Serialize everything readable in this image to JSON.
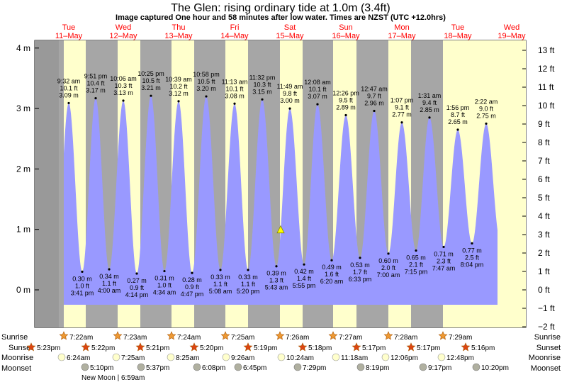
{
  "title": "The Glen: rising  ordinary tide at 1.0m (3.4ft)",
  "subtitle": "Image captured One hour and 58 minutes after low water. Times are NZST (UTC +12.0hrs)",
  "days": [
    {
      "dow": "Tue",
      "date": "11–May"
    },
    {
      "dow": "Wed",
      "date": "12–May"
    },
    {
      "dow": "Thu",
      "date": "13–May"
    },
    {
      "dow": "Fri",
      "date": "14–May"
    },
    {
      "dow": "Sat",
      "date": "15–May"
    },
    {
      "dow": "Sun",
      "date": "16–May"
    },
    {
      "dow": "Mon",
      "date": "17–May"
    },
    {
      "dow": "Tue",
      "date": "18–May"
    },
    {
      "dow": "Wed",
      "date": "19–May"
    }
  ],
  "row_labels": {
    "sunrise": "Sunrise",
    "sunset": "Sunset",
    "moonrise": "Moonrise",
    "moonset": "Moonset"
  },
  "sunrise": [
    "7:22am",
    "7:23am",
    "7:24am",
    "7:25am",
    "7:26am",
    "7:27am",
    "7:28am",
    "7:29am"
  ],
  "sunset": [
    "5:23pm",
    "5:22pm",
    "5:21pm",
    "5:20pm",
    "5:19pm",
    "5:18pm",
    "5:17pm",
    "5:17pm",
    "5:16pm"
  ],
  "moonrise": [
    "6:24am",
    "7:25am",
    "8:25am",
    "9:26am",
    "10:24am",
    "11:18am",
    "12:06pm",
    "12:48pm"
  ],
  "moonset": [
    "5:10pm",
    "5:37pm",
    "6:08pm",
    "6:45pm",
    "7:29pm",
    "8:19pm",
    "9:17pm",
    "10:20pm"
  ],
  "moon_phase": "New Moon | 6:59am",
  "colors": {
    "night": "#a6a6a6",
    "day": "#ffffcc",
    "tide": "#9999ff",
    "day_label": "#ff0000",
    "sun": "#ee9933",
    "sunset": "#dd4411",
    "moonrise": "#ffffcc",
    "moonset": "#b0b0a0",
    "marker": "#ffff00"
  },
  "chart_data": {
    "type": "area",
    "title": "The Glen: rising  ordinary tide at 1.0m (3.4ft)",
    "ylim_m": [
      -0.6,
      4.1
    ],
    "ylim_ft": [
      -2,
      13
    ],
    "y_ticks_m": [
      "0 m",
      "1 m",
      "2 m",
      "3 m",
      "4 m"
    ],
    "y_ticks_ft": [
      "−2 ft",
      "−1 ft",
      "0 ft",
      "1 ft",
      "2 ft",
      "3 ft",
      "4 ft",
      "5 ft",
      "6 ft",
      "7 ft",
      "8 ft",
      "9 ft",
      "10 ft",
      "11 ft",
      "12 ft",
      "13 ft"
    ],
    "highs": [
      {
        "time": "9:32 am",
        "ft": "10.1 ft",
        "m": "3.09 m",
        "value": 3.09
      },
      {
        "time": "9:51 pm",
        "ft": "10.4 ft",
        "m": "3.17 m",
        "value": 3.17
      },
      {
        "time": "10:06 am",
        "ft": "10.3 ft",
        "m": "3.13 m",
        "value": 3.13
      },
      {
        "time": "10:25 pm",
        "ft": "10.5 ft",
        "m": "3.21 m",
        "value": 3.21
      },
      {
        "time": "10:39 am",
        "ft": "10.2 ft",
        "m": "3.12 m",
        "value": 3.12
      },
      {
        "time": "10:58 pm",
        "ft": "10.5 ft",
        "m": "3.20 m",
        "value": 3.2
      },
      {
        "time": "11:13 am",
        "ft": "10.1 ft",
        "m": "3.08 m",
        "value": 3.08
      },
      {
        "time": "11:32 pm",
        "ft": "10.3 ft",
        "m": "3.15 m",
        "value": 3.15
      },
      {
        "time": "11:49 am",
        "ft": "9.8 ft",
        "m": "3.00 m",
        "value": 3.0
      },
      {
        "time": "12:08 am",
        "ft": "10.1 ft",
        "m": "3.07 m",
        "value": 3.07
      },
      {
        "time": "12:26 pm",
        "ft": "9.5 ft",
        "m": "2.89 m",
        "value": 2.89
      },
      {
        "time": "12:47 am",
        "ft": "9.7 ft",
        "m": "2.96 m",
        "value": 2.96
      },
      {
        "time": "1:07 pm",
        "ft": "9.1 ft",
        "m": "2.77 m",
        "value": 2.77
      },
      {
        "time": "1:31 am",
        "ft": "9.4 ft",
        "m": "2.85 m",
        "value": 2.85
      },
      {
        "time": "1:56 pm",
        "ft": "8.7 ft",
        "m": "2.65 m",
        "value": 2.65
      },
      {
        "time": "2:22 am",
        "ft": "9.0 ft",
        "m": "2.75 m",
        "value": 2.75
      }
    ],
    "lows": [
      {
        "time": "3:41 pm",
        "ft": "1.0 ft",
        "m": "0.30 m",
        "value": 0.3
      },
      {
        "time": "4:00 am",
        "ft": "1.1 ft",
        "m": "0.34 m",
        "value": 0.34
      },
      {
        "time": "4:14 pm",
        "ft": "0.9 ft",
        "m": "0.27 m",
        "value": 0.27
      },
      {
        "time": "4:34 am",
        "ft": "1.0 ft",
        "m": "0.31 m",
        "value": 0.31
      },
      {
        "time": "4:47 pm",
        "ft": "0.9 ft",
        "m": "0.28 m",
        "value": 0.28
      },
      {
        "time": "5:08 am",
        "ft": "1.1 ft",
        "m": "0.33 m",
        "value": 0.33
      },
      {
        "time": "5:20 pm",
        "ft": "1.1 ft",
        "m": "0.33 m",
        "value": 0.33
      },
      {
        "time": "5:43 am",
        "ft": "1.3 ft",
        "m": "0.39 m",
        "value": 0.39
      },
      {
        "time": "5:55 pm",
        "ft": "1.4 ft",
        "m": "0.42 m",
        "value": 0.42
      },
      {
        "time": "6:20 am",
        "ft": "1.6 ft",
        "m": "0.49 m",
        "value": 0.49
      },
      {
        "time": "6:33 pm",
        "ft": "1.7 ft",
        "m": "0.53 m",
        "value": 0.53
      },
      {
        "time": "7:00 am",
        "ft": "2.0 ft",
        "m": "0.60 m",
        "value": 0.6
      },
      {
        "time": "7:15 pm",
        "ft": "2.1 ft",
        "m": "0.65 m",
        "value": 0.65
      },
      {
        "time": "7:47 am",
        "ft": "2.3 ft",
        "m": "0.71 m",
        "value": 0.71
      },
      {
        "time": "8:04 pm",
        "ft": "2.5 ft",
        "m": "0.77 m",
        "value": 0.77
      }
    ],
    "current": {
      "value": 1.0
    }
  }
}
